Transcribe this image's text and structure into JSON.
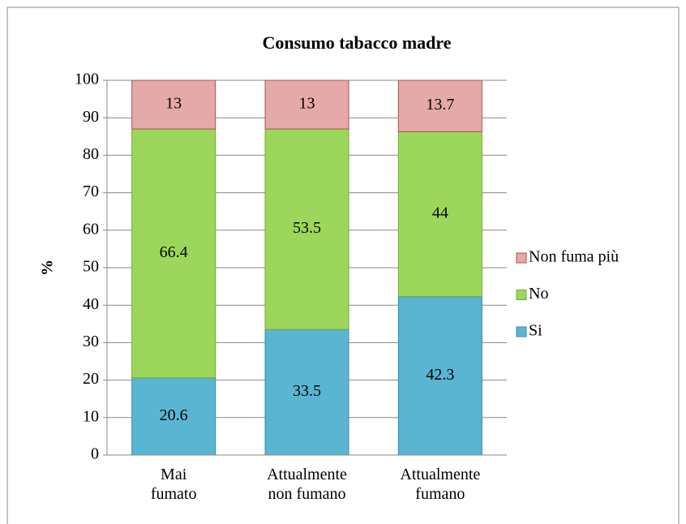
{
  "chart_data": {
    "type": "stacked_bar",
    "title": "Consumo tabacco madre",
    "y_label": "%",
    "categories": [
      "Mai\nfumato",
      "Attualmente\nnon fumano",
      "Attualmente\nfumano"
    ],
    "series": [
      {
        "name": "Si",
        "color": "#5ab5d3",
        "values": [
          20.6,
          33.5,
          42.3
        ]
      },
      {
        "name": "No",
        "color": "#9cd75c",
        "values": [
          66.4,
          53.5,
          44
        ]
      },
      {
        "name": "Non fuma più",
        "color": "#e4a9a8",
        "values": [
          13,
          13,
          13.7
        ]
      }
    ],
    "ylim": [
      0,
      100
    ],
    "yticks": [
      0,
      10,
      20,
      30,
      40,
      50,
      60,
      70,
      80,
      90,
      100
    ],
    "grid": true,
    "legend": "right"
  }
}
